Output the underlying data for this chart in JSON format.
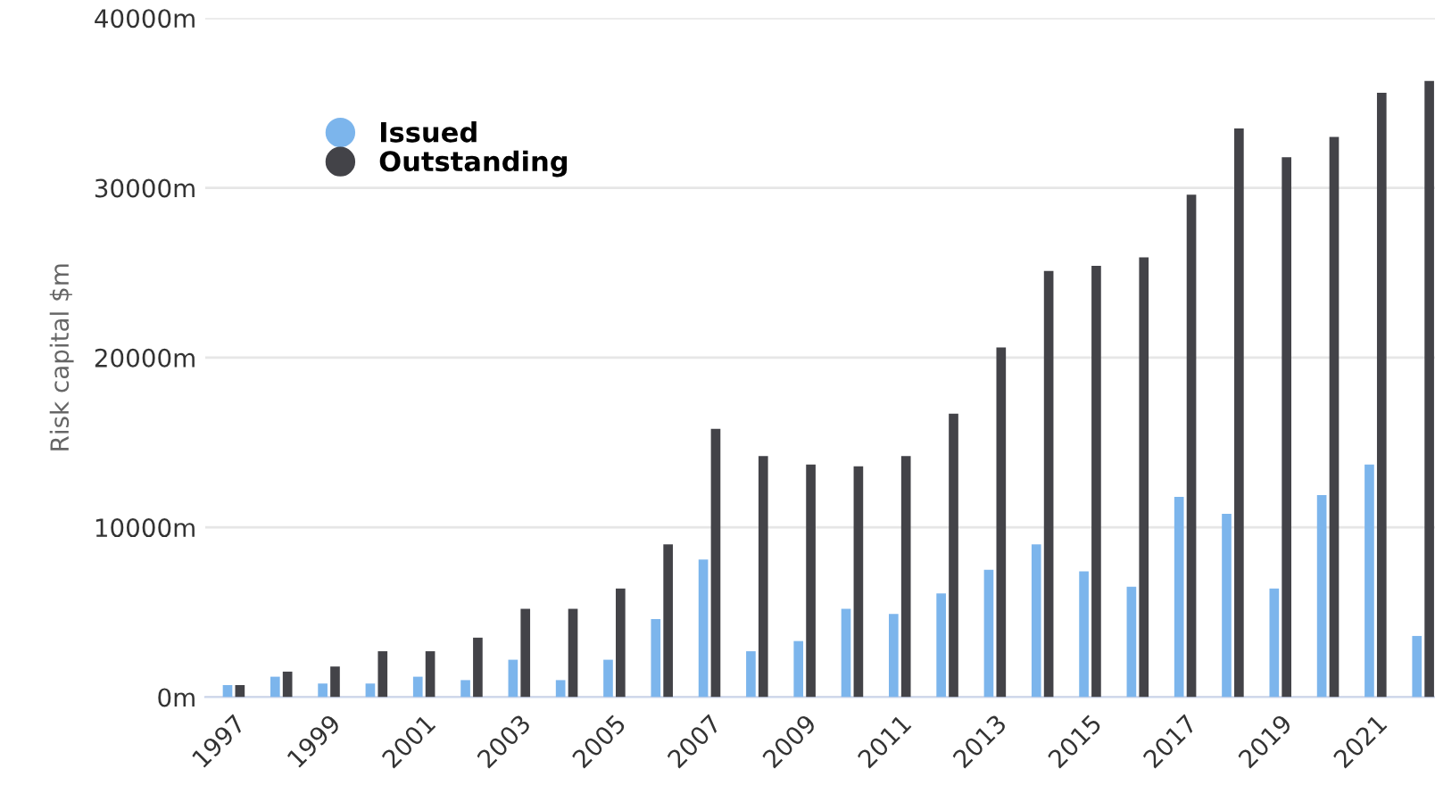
{
  "chart_data": {
    "type": "bar",
    "ylabel": "Risk capital $m",
    "categories": [
      "1997",
      null,
      "1999",
      null,
      "2001",
      null,
      "2003",
      null,
      "2005",
      null,
      "2007",
      null,
      "2009",
      null,
      "2011",
      null,
      "2013",
      null,
      "2015",
      null,
      "2017",
      null,
      "2019",
      null,
      "2021",
      null
    ],
    "series": [
      {
        "name": "Issued",
        "color": "#7cb5ec",
        "values": [
          700,
          1200,
          800,
          800,
          1200,
          1000,
          2200,
          1000,
          2200,
          4600,
          8100,
          2700,
          3300,
          5200,
          4900,
          6100,
          7500,
          9000,
          7400,
          6500,
          11800,
          10800,
          6400,
          11900,
          13700,
          3600
        ]
      },
      {
        "name": "Outstanding",
        "color": "#434348",
        "values": [
          700,
          1500,
          1800,
          2700,
          2700,
          3500,
          5200,
          5200,
          6400,
          9000,
          15800,
          14200,
          13700,
          13600,
          14200,
          16700,
          20600,
          25100,
          25400,
          25900,
          29600,
          33500,
          31800,
          33000,
          35600,
          36300
        ]
      }
    ],
    "ylim": [
      0,
      40000
    ],
    "yticks": [
      {
        "value": 0,
        "label": "0m"
      },
      {
        "value": 10000,
        "label": "10000m"
      },
      {
        "value": 20000,
        "label": "20000m"
      },
      {
        "value": 30000,
        "label": "30000m"
      },
      {
        "value": 40000,
        "label": "40000m"
      }
    ],
    "grid": "y",
    "legend": "top left"
  }
}
